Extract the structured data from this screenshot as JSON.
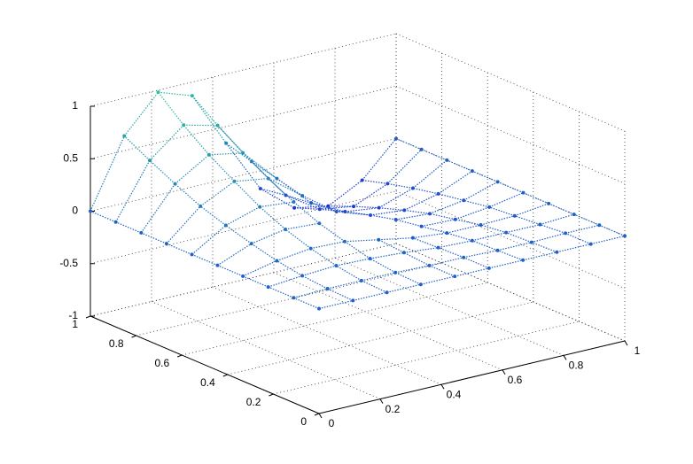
{
  "chart_data": {
    "type": "surface3d",
    "x": [
      0,
      0.111,
      0.222,
      0.333,
      0.444,
      0.556,
      0.667,
      0.778,
      0.889,
      1
    ],
    "y": [
      0,
      0.111,
      0.222,
      0.333,
      0.444,
      0.556,
      0.667,
      0.778,
      0.889,
      1
    ],
    "z": [
      [
        0,
        0,
        0,
        0,
        0,
        0,
        0,
        0,
        0,
        0
      ],
      [
        0,
        0.01,
        0.01,
        0.01,
        0,
        0,
        -0.01,
        -0.01,
        0,
        0
      ],
      [
        0,
        0.03,
        0.05,
        0.04,
        0.02,
        -0.01,
        -0.02,
        -0.02,
        -0.02,
        0
      ],
      [
        0,
        0.07,
        0.11,
        0.1,
        0.04,
        -0.02,
        -0.05,
        -0.05,
        -0.04,
        0
      ],
      [
        0,
        0.13,
        0.19,
        0.17,
        null,
        null,
        -0.09,
        -0.1,
        -0.06,
        0
      ],
      [
        0,
        0.2,
        0.3,
        0.27,
        null,
        null,
        -0.13,
        -0.15,
        -0.1,
        0
      ],
      [
        0,
        0.28,
        0.44,
        0.39,
        0.15,
        -0.08,
        -0.19,
        -0.22,
        -0.14,
        0
      ],
      [
        0,
        0.39,
        0.59,
        0.53,
        0.21,
        -0.1,
        -0.26,
        -0.3,
        -0.19,
        0
      ],
      [
        0,
        0.51,
        0.77,
        0.69,
        0.27,
        -0.13,
        -0.34,
        -0.39,
        -0.25,
        0
      ],
      [
        0,
        0.64,
        0.98,
        0.87,
        0.34,
        -0.17,
        -0.43,
        -0.49,
        -0.32,
        0
      ]
    ],
    "xlim": [
      0,
      1
    ],
    "ylim": [
      0,
      1
    ],
    "zlim": [
      -1,
      1
    ],
    "xticks": [
      0,
      0.2,
      0.4,
      0.6,
      0.8,
      1
    ],
    "yticks": [
      0,
      0.2,
      0.4,
      0.6,
      0.8,
      1
    ],
    "zticks": [
      -1,
      -0.5,
      0,
      0.5,
      1
    ],
    "colormap": [
      "#1a2fd8",
      "#2ec4a0"
    ],
    "grid": true
  }
}
